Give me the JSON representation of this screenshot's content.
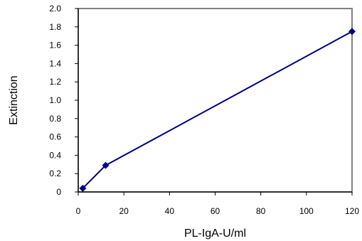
{
  "chart_data": {
    "type": "line",
    "title": "",
    "xlabel": "PL-IgA-U/ml",
    "ylabel": "Extinction",
    "xlim": [
      0,
      120
    ],
    "ylim": [
      0,
      2.0
    ],
    "xticks": [
      "0",
      "20",
      "40",
      "60",
      "80",
      "100",
      "120"
    ],
    "yticks": [
      "0",
      "0.2",
      "0.4",
      "0.6",
      "0.8",
      "1.0",
      "1.2",
      "1.4",
      "1.6",
      "1.8",
      "2.0"
    ],
    "grid": false,
    "legend": "none",
    "series": [
      {
        "x": [
          2,
          12,
          120
        ],
        "y": [
          0.04,
          0.29,
          1.75
        ],
        "color": "#000080",
        "marker": "diamond"
      }
    ],
    "colors": {
      "line": "#000080",
      "marker": "#000080",
      "frame": "#808080",
      "axis": "#000000"
    }
  }
}
